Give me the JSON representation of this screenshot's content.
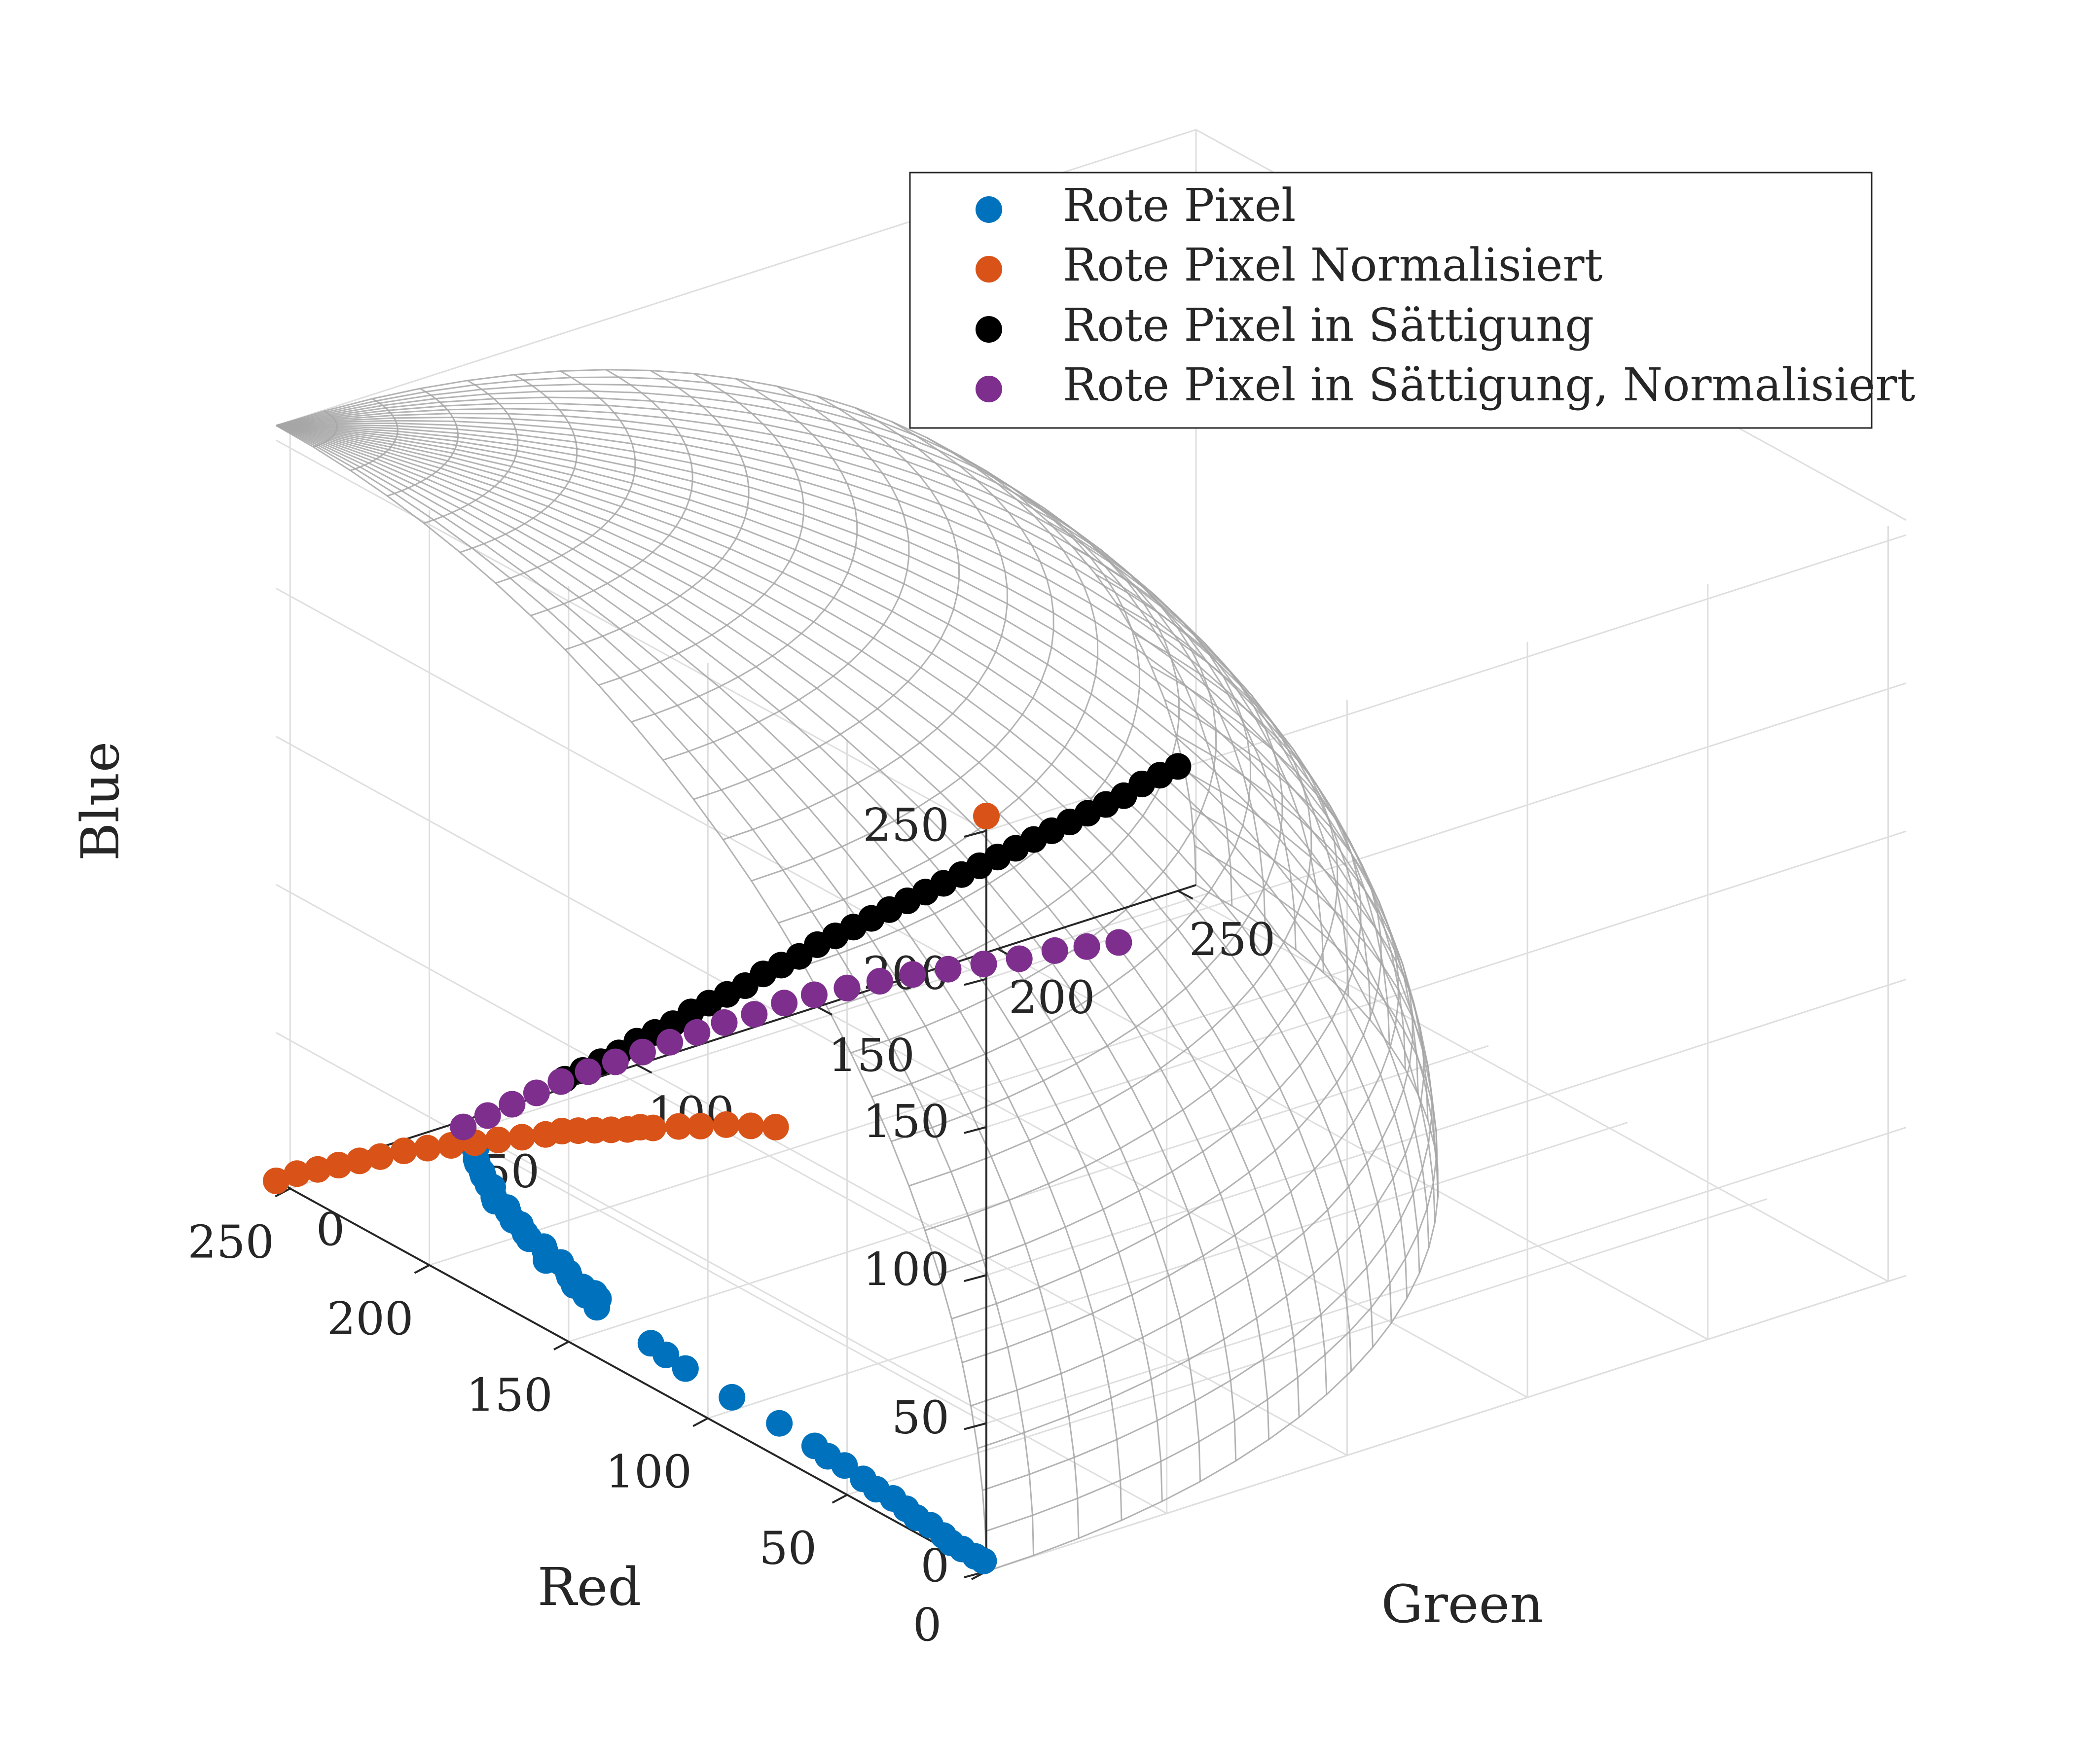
{
  "chart_data": {
    "type": "scatter3d",
    "axes": {
      "x": {
        "label": "Red",
        "ticks": [
          0,
          50,
          100,
          150,
          200,
          250
        ],
        "range": [
          0,
          255
        ]
      },
      "y": {
        "label": "Green",
        "ticks": [
          0,
          50,
          100,
          150,
          200,
          250
        ],
        "range": [
          0,
          255
        ]
      },
      "z": {
        "label": "Blue",
        "ticks": [
          0,
          50,
          100,
          150,
          200,
          250
        ],
        "range": [
          0,
          255
        ]
      }
    },
    "grid": true,
    "surface": {
      "type": "sphere-octant",
      "radius": 255,
      "center": [
        255,
        0,
        0
      ],
      "color": "#a6a6a6"
    },
    "legend_position": "top-right",
    "colors": {
      "rote_pixel": "#0072bd",
      "normalisiert": "#d95319",
      "saettigung": "#000000",
      "saettigung_normalisiert": "#7e2f8e",
      "grid": "#dedede",
      "axis": "#262626"
    },
    "series": [
      {
        "name": "Rote Pixel",
        "color": "#0072bd",
        "points": [
          [
            1,
            0,
            3
          ],
          [
            4,
            0,
            3
          ],
          [
            10,
            1,
            2
          ],
          [
            14,
            1,
            2
          ],
          [
            18,
            2,
            2
          ],
          [
            24,
            3,
            2
          ],
          [
            29,
            3,
            2
          ],
          [
            34,
            4,
            2
          ],
          [
            40,
            5,
            2
          ],
          [
            46,
            5,
            2
          ],
          [
            52,
            6,
            2
          ],
          [
            60,
            7,
            2
          ],
          [
            66,
            7,
            2
          ],
          [
            72,
            8,
            2
          ],
          [
            86,
            9,
            2
          ],
          [
            103,
            9,
            2
          ],
          [
            121,
            10,
            2
          ],
          [
            128,
            10,
            3
          ],
          [
            136,
            12,
            2
          ],
          [
            158,
            14,
            2
          ],
          [
            160,
            16,
            3
          ],
          [
            162,
            14,
            4
          ],
          [
            164,
            18,
            2
          ],
          [
            167,
            17,
            3
          ],
          [
            170,
            17,
            2
          ],
          [
            173,
            18,
            3
          ],
          [
            176,
            20,
            2
          ],
          [
            180,
            21,
            3
          ],
          [
            184,
            20,
            2
          ],
          [
            187,
            22,
            3
          ],
          [
            190,
            24,
            2
          ],
          [
            194,
            23,
            3
          ],
          [
            198,
            25,
            2
          ],
          [
            201,
            26,
            3
          ],
          [
            205,
            27,
            2
          ],
          [
            208,
            28,
            3
          ],
          [
            211,
            30,
            2
          ],
          [
            214,
            29,
            3
          ],
          [
            217,
            31,
            2
          ],
          [
            220,
            33,
            3
          ],
          [
            223,
            34,
            2
          ],
          [
            226,
            35,
            3
          ],
          [
            229,
            37,
            2
          ],
          [
            232,
            38,
            3
          ],
          [
            235,
            40,
            2
          ],
          [
            238,
            42,
            3
          ],
          [
            240,
            44,
            2
          ]
        ]
      },
      {
        "name": "Rote Pixel Normalisiert",
        "color": "#d95319",
        "points": [
          [
            255,
            0,
            0
          ],
          [
            254,
            5,
            1
          ],
          [
            253,
            10,
            1
          ],
          [
            252,
            15,
            1
          ],
          [
            251,
            20,
            1
          ],
          [
            250,
            25,
            1
          ],
          [
            248,
            30,
            2
          ],
          [
            246,
            35,
            2
          ],
          [
            244,
            40,
            2
          ],
          [
            242,
            45,
            2
          ],
          [
            240,
            50,
            2
          ],
          [
            238,
            55,
            2
          ],
          [
            236,
            60,
            2
          ],
          [
            234,
            63,
            3
          ],
          [
            232,
            66,
            3
          ],
          [
            230,
            69,
            3
          ],
          [
            228,
            72,
            3
          ],
          [
            226,
            75,
            3
          ],
          [
            224,
            77,
            4
          ],
          [
            222,
            79,
            4
          ],
          [
            218,
            83,
            5
          ],
          [
            214,
            86,
            6
          ],
          [
            210,
            90,
            7
          ],
          [
            205,
            93,
            8
          ],
          [
            200,
            96,
            9
          ],
          [
            0,
            0,
            255
          ]
        ]
      },
      {
        "name": "Rote Pixel in Sättigung",
        "color": "#000000",
        "points": [
          [
            255,
            80,
            3
          ],
          [
            255,
            85,
            4
          ],
          [
            255,
            90,
            5
          ],
          [
            255,
            95,
            6
          ],
          [
            255,
            100,
            8
          ],
          [
            255,
            105,
            9
          ],
          [
            255,
            110,
            10
          ],
          [
            255,
            115,
            12
          ],
          [
            255,
            120,
            13
          ],
          [
            255,
            125,
            14
          ],
          [
            255,
            130,
            15
          ],
          [
            255,
            135,
            17
          ],
          [
            255,
            140,
            18
          ],
          [
            255,
            145,
            19
          ],
          [
            255,
            150,
            21
          ],
          [
            255,
            155,
            22
          ],
          [
            255,
            160,
            23
          ],
          [
            255,
            165,
            24
          ],
          [
            255,
            170,
            25
          ],
          [
            255,
            175,
            26
          ],
          [
            255,
            180,
            27
          ],
          [
            255,
            185,
            28
          ],
          [
            255,
            190,
            29
          ],
          [
            255,
            195,
            30
          ],
          [
            255,
            200,
            31
          ],
          [
            255,
            205,
            32
          ],
          [
            255,
            210,
            33
          ],
          [
            255,
            215,
            34
          ],
          [
            255,
            220,
            35
          ],
          [
            255,
            225,
            36
          ],
          [
            255,
            230,
            37
          ],
          [
            255,
            235,
            38
          ],
          [
            255,
            240,
            40
          ],
          [
            255,
            245,
            41
          ],
          [
            255,
            250,
            42
          ]
        ]
      },
      {
        "name": "Rote Pixel in Sättigung, Normalisiert",
        "color": "#7e2f8e",
        "points": [
          [
            250,
            48,
            2
          ],
          [
            249,
            54,
            4
          ],
          [
            248,
            60,
            6
          ],
          [
            247,
            66,
            8
          ],
          [
            246,
            72,
            10
          ],
          [
            244,
            78,
            12
          ],
          [
            242,
            84,
            14
          ],
          [
            240,
            90,
            16
          ],
          [
            238,
            96,
            18
          ],
          [
            236,
            102,
            20
          ],
          [
            234,
            108,
            22
          ],
          [
            231,
            114,
            24
          ],
          [
            228,
            120,
            27
          ],
          [
            225,
            126,
            29
          ],
          [
            221,
            132,
            31
          ],
          [
            217,
            138,
            33
          ],
          [
            213,
            144,
            35
          ],
          [
            208,
            150,
            37
          ],
          [
            203,
            156,
            39
          ],
          [
            198,
            162,
            41
          ],
          [
            193,
            168,
            44
          ],
          [
            188,
            173,
            46
          ],
          [
            183,
            178,
            48
          ]
        ]
      }
    ]
  }
}
